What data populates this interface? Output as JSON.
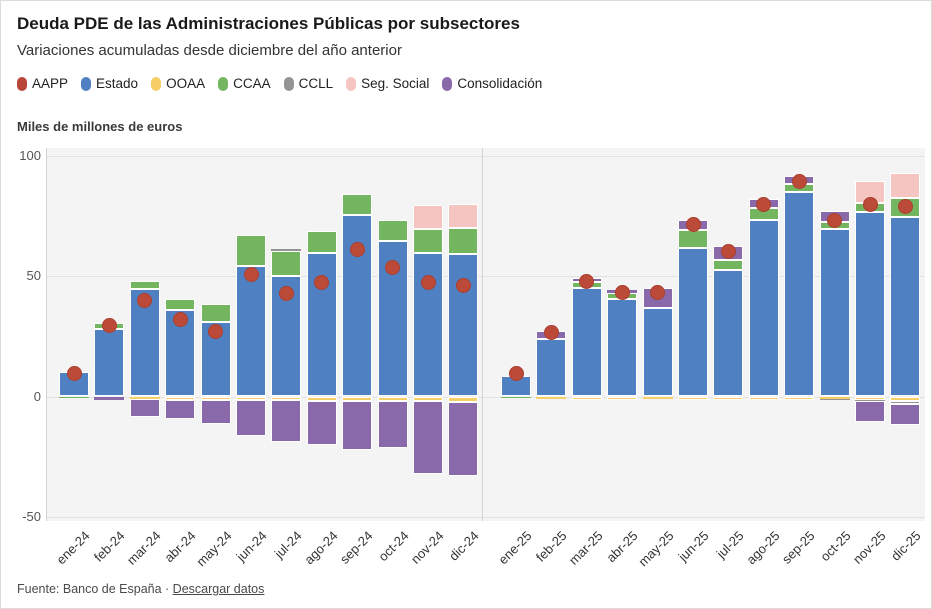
{
  "header": {
    "title": "Deuda PDE de las Administraciones Públicas por subsectores",
    "subtitle": "Variaciones acumuladas desde diciembre del año anterior"
  },
  "unit_label": "Miles de millones de euros",
  "footer": {
    "source_text": "Fuente: Banco de España · ",
    "link_label": "Descargar datos"
  },
  "chart_data": {
    "type": "bar",
    "variant": "stacked-bars-with-dot-markers",
    "title": "Deuda PDE de las Administraciones Públicas por subsectores",
    "subtitle": "Variaciones acumuladas desde diciembre del año anterior",
    "ylabel": "Miles de millones de euros",
    "ylim": [
      -50,
      100
    ],
    "yticks": [
      100,
      50,
      0,
      -50
    ],
    "grid": true,
    "legend_position": "top",
    "series": [
      {
        "key": "aapp",
        "label": "AAPP",
        "color": "#b8473a",
        "style": "dot"
      },
      {
        "key": "estado",
        "label": "Estado",
        "color": "#4f81c2",
        "style": "bar"
      },
      {
        "key": "ooaa",
        "label": "OOAA",
        "color": "#f6cf66",
        "style": "bar"
      },
      {
        "key": "ccaa",
        "label": "CCAA",
        "color": "#74b65f",
        "style": "bar"
      },
      {
        "key": "ccll",
        "label": "CCLL",
        "color": "#949494",
        "style": "bar"
      },
      {
        "key": "seg_social",
        "label": "Seg. Social",
        "color": "#f4c5c1",
        "style": "bar"
      },
      {
        "key": "consolidacion",
        "label": "Consolidación",
        "color": "#8a69ab",
        "style": "bar"
      }
    ],
    "stack_order_positive": [
      "estado",
      "ccaa",
      "ccll",
      "seg_social",
      "consolidacion"
    ],
    "stack_order_negative": [
      "ooaa",
      "ccaa",
      "ccll",
      "consolidacion"
    ],
    "panels": [
      {
        "name": "2024",
        "months": [
          {
            "label": "ene-24",
            "estado": 10.0,
            "ccaa": -0.8,
            "aapp": 9.5
          },
          {
            "label": "feb-24",
            "estado": 28.0,
            "ccaa": 2.5,
            "ooaa": -0.4,
            "consolidacion": -1.0,
            "aapp": 29.5
          },
          {
            "label": "mar-24",
            "estado": 44.5,
            "ccaa": 3.5,
            "ooaa": -1.2,
            "consolidacion": -7.3,
            "aapp": 39.8
          },
          {
            "label": "abr-24",
            "estado": 36.0,
            "ccaa": 4.5,
            "ooaa": -1.3,
            "consolidacion": -8.0,
            "aapp": 31.8
          },
          {
            "label": "may-24",
            "estado": 31.0,
            "ccaa": 7.4,
            "ooaa": -1.3,
            "consolidacion": -10.3,
            "aapp": 27.0
          },
          {
            "label": "jun-24",
            "estado": 54.4,
            "ccaa": 12.5,
            "ooaa": -1.3,
            "consolidacion": -15.0,
            "aapp": 50.5
          },
          {
            "label": "jul-24",
            "estado": 50.2,
            "ccaa": 10.4,
            "ccll": 0.5,
            "ooaa": -1.5,
            "consolidacion": -17.5,
            "aapp": 42.6
          },
          {
            "label": "ago-24",
            "estado": 59.5,
            "ccaa": 9.2,
            "ooaa": -1.7,
            "consolidacion": -18.5,
            "aapp": 47.4
          },
          {
            "label": "sep-24",
            "estado": 75.5,
            "ccaa": 8.5,
            "ooaa": -1.7,
            "consolidacion": -20.5,
            "aapp": 61.0
          },
          {
            "label": "oct-24",
            "estado": 64.8,
            "ccaa": 8.6,
            "ooaa": -1.7,
            "consolidacion": -19.5,
            "aapp": 53.4
          },
          {
            "label": "nov-24",
            "estado": 59.5,
            "ccaa": 10.0,
            "seg_social": 10.2,
            "ooaa": -1.7,
            "consolidacion": -30.5,
            "aapp": 47.4
          },
          {
            "label": "dic-24",
            "estado": 59.0,
            "ccaa": 10.8,
            "seg_social": 10.0,
            "ooaa": -2.2,
            "consolidacion": -31.0,
            "aapp": 46.0
          }
        ]
      },
      {
        "name": "2025",
        "months": [
          {
            "label": "ene-25",
            "estado": 8.7,
            "ccaa": -0.8,
            "aapp": 9.5
          },
          {
            "label": "feb-25",
            "estado": 24.0,
            "consolidacion": 3.4,
            "ooaa": -1.0,
            "aapp": 26.5
          },
          {
            "label": "mar-25",
            "estado": 45.1,
            "ccaa": 2.5,
            "consolidacion": 1.7,
            "ooaa": -1.5,
            "aapp": 47.9
          },
          {
            "label": "abr-25",
            "estado": 40.4,
            "ccaa": 2.8,
            "consolidacion": 1.2,
            "ooaa": -1.5,
            "aapp": 43.4
          },
          {
            "label": "may-25",
            "estado": 36.8,
            "consolidacion": 8.1,
            "ooaa": -1.0,
            "aapp": 43.2
          },
          {
            "label": "jun-25",
            "estado": 61.8,
            "ccaa": 7.4,
            "consolidacion": 4.1,
            "ooaa": -1.5,
            "aapp": 71.5
          },
          {
            "label": "jul-25",
            "estado": 52.5,
            "ccaa": 4.2,
            "consolidacion": 5.9,
            "ooaa": -1.5,
            "aapp": 60.1
          },
          {
            "label": "ago-25",
            "estado": 73.3,
            "ccaa": 5.1,
            "consolidacion": 3.5,
            "ooaa": -1.5,
            "aapp": 79.8
          },
          {
            "label": "sep-25",
            "estado": 85.1,
            "ccaa": 3.2,
            "consolidacion": 3.5,
            "ooaa": -1.5,
            "aapp": 89.5
          },
          {
            "label": "oct-25",
            "estado": 69.6,
            "ccaa": 3.0,
            "consolidacion": 4.6,
            "ooaa": -1.0,
            "ccll": -0.5,
            "aapp": 73.3
          },
          {
            "label": "nov-25",
            "estado": 76.8,
            "ccaa": 3.5,
            "seg_social": 9.4,
            "ooaa": -1.3,
            "ccll": -0.5,
            "consolidacion": -9.0,
            "aapp": 79.6
          },
          {
            "label": "dic-25",
            "estado": 74.7,
            "ccaa": 7.7,
            "seg_social": 10.4,
            "ooaa": -1.7,
            "ccll": -1.6,
            "consolidacion": -8.5,
            "aapp": 78.9
          }
        ]
      }
    ]
  }
}
